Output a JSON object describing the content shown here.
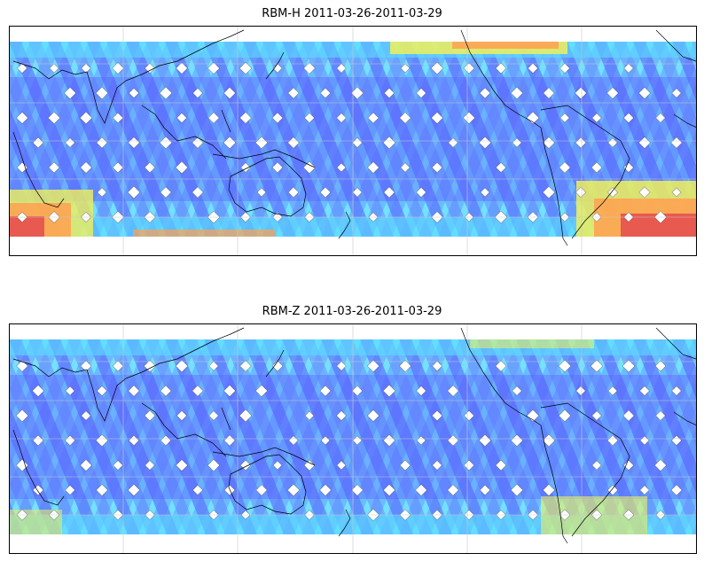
{
  "panels": [
    {
      "title": "RBM-H 2011-03-26-2011-03-29",
      "intensity": "high"
    },
    {
      "title": "RBM-Z 2011-03-26-2011-03-29",
      "intensity": "low"
    }
  ],
  "colors": {
    "low": "#5a5aff",
    "mid": "#5adcff",
    "high_yellow": "#f0f05a",
    "high_orange": "#ffa050",
    "high_red": "#e65050",
    "gap": "#ffffff",
    "coast": "#000000",
    "grid": "#c8c8c8"
  },
  "map": {
    "projection": "equirectangular",
    "coastlines": true,
    "gridlines": true
  }
}
